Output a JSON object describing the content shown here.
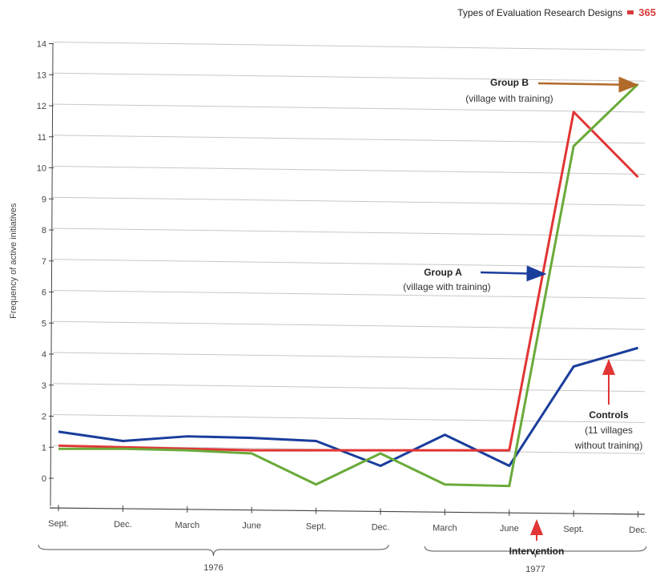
{
  "header": {
    "title": "Types of Evaluation Research Designs",
    "page_number": "365"
  },
  "chart_data": {
    "type": "line",
    "ylabel": "Frequency of active initiatives",
    "ylim": [
      0,
      14
    ],
    "yticks": [
      0,
      1,
      2,
      3,
      4,
      5,
      6,
      7,
      8,
      9,
      10,
      11,
      12,
      13,
      14
    ],
    "categories": [
      "Sept.",
      "Dec.",
      "March",
      "June",
      "Sept.",
      "Dec.",
      "March",
      "June",
      "Sept.",
      "Dec."
    ],
    "years": [
      {
        "label": "1976",
        "from": 0,
        "to": 5
      },
      {
        "label": "1977",
        "from": 6,
        "to": 9
      }
    ],
    "series": [
      {
        "name": "Group A",
        "color": "#1a3d9c",
        "values": [
          1.5,
          1.2,
          1.35,
          1.3,
          1.2,
          0.4,
          1.4,
          0.4,
          3.6,
          4.2
        ]
      },
      {
        "name": "Group B",
        "color": "#e23535",
        "values": [
          1.05,
          1.0,
          0.95,
          0.9,
          0.9,
          0.9,
          0.9,
          0.9,
          11.8,
          9.7
        ]
      },
      {
        "name": "Controls",
        "color": "#6aaa3a",
        "values": [
          0.95,
          0.95,
          0.9,
          0.8,
          -0.2,
          0.8,
          -0.2,
          -0.25,
          10.7,
          12.7
        ]
      }
    ],
    "annotations": {
      "group_b": {
        "title": "Group B",
        "subtitle": "(village with training)"
      },
      "group_a": {
        "title": "Group A",
        "subtitle": "(village with training)"
      },
      "controls": {
        "title": "Controls",
        "line1": "(11 villages",
        "line2": "without training)"
      },
      "intervention": "Intervention"
    },
    "grid": true
  }
}
